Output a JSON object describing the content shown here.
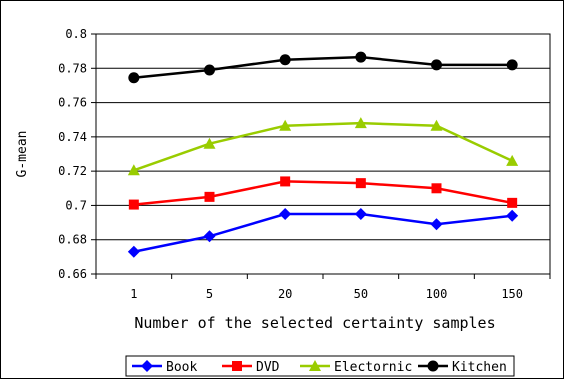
{
  "chart_data": {
    "type": "line",
    "categories": [
      "1",
      "5",
      "20",
      "50",
      "100",
      "150"
    ],
    "ylabel": "G-mean",
    "xlabel": "Number of the selected certainty samples",
    "ylim": [
      0.66,
      0.8
    ],
    "yticks": [
      "0.66",
      "0.68",
      "0.7",
      "0.72",
      "0.74",
      "0.76",
      "0.78",
      "0.8"
    ],
    "grid": "horizontal",
    "legend_position": "bottom",
    "series": [
      {
        "name": "Book",
        "color": "#0000ff",
        "marker": "diamond",
        "values": [
          0.673,
          0.682,
          0.695,
          0.695,
          0.689,
          0.694
        ]
      },
      {
        "name": "DVD",
        "color": "#ff0000",
        "marker": "square",
        "values": [
          0.7005,
          0.705,
          0.714,
          0.713,
          0.71,
          0.7015
        ]
      },
      {
        "name": "Electornic",
        "color": "#99cc00",
        "marker": "triangle",
        "values": [
          0.7205,
          0.736,
          0.7465,
          0.748,
          0.7465,
          0.726
        ]
      },
      {
        "name": "Kitchen",
        "color": "#000000",
        "marker": "circle",
        "values": [
          0.7745,
          0.779,
          0.785,
          0.7865,
          0.782,
          0.782
        ]
      }
    ]
  }
}
